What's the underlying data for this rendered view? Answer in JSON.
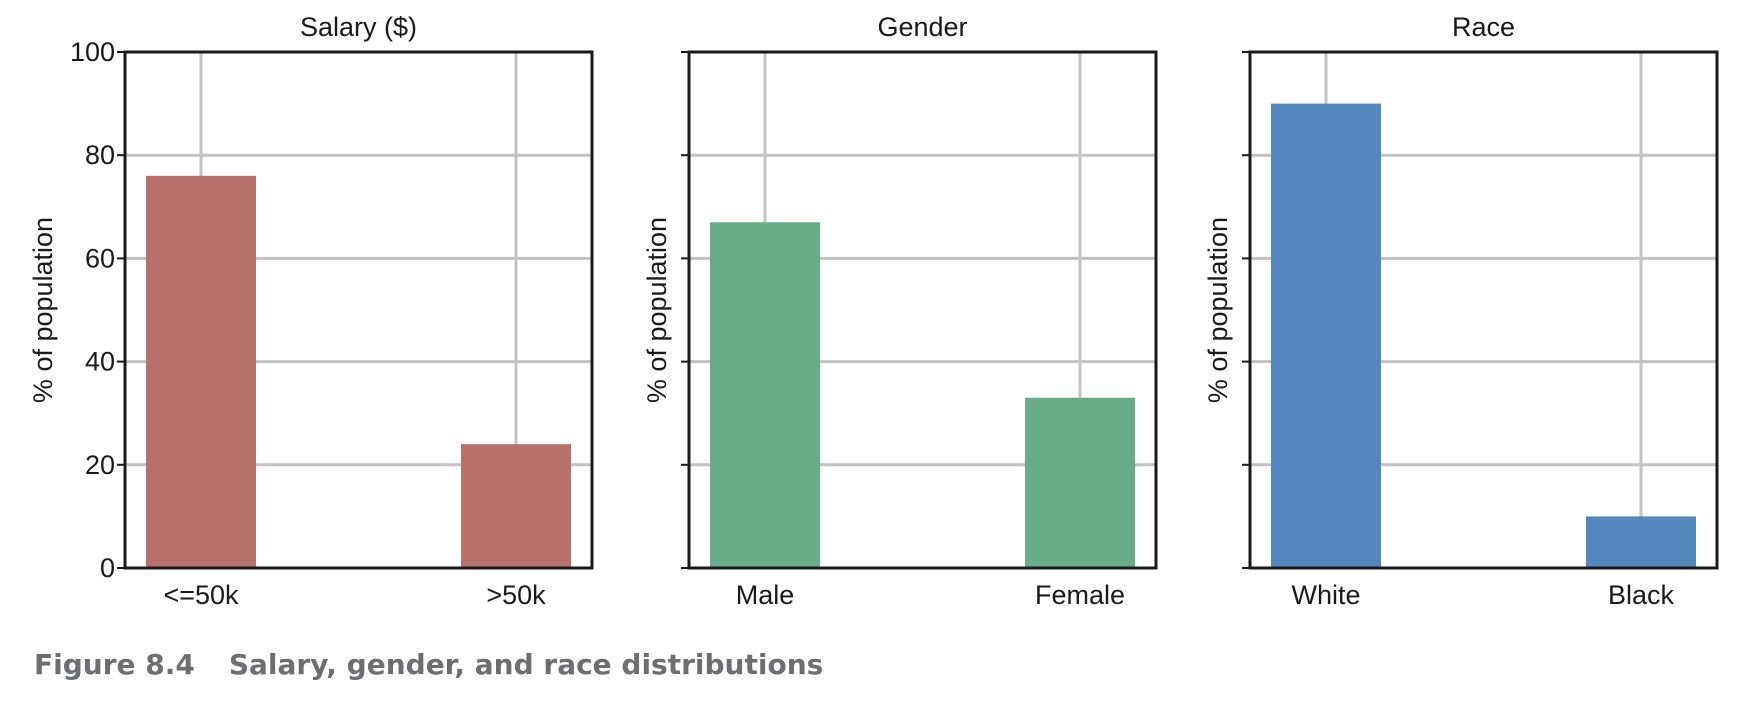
{
  "caption": {
    "label": "Figure 8.4",
    "text": "Salary, gender, and race distributions"
  },
  "chart_data": [
    {
      "type": "bar",
      "title": "Salary ($)",
      "xlabel": "",
      "ylabel": "% of population",
      "categories": [
        "<=50k",
        ">50k"
      ],
      "values": [
        76,
        24
      ],
      "ylim": [
        0,
        100
      ],
      "yticks": [
        0,
        20,
        40,
        60,
        80,
        100
      ],
      "show_ytick_labels": true,
      "grid": true,
      "color": "#b8716a"
    },
    {
      "type": "bar",
      "title": "Gender",
      "xlabel": "",
      "ylabel": "% of population",
      "categories": [
        "Male",
        "Female"
      ],
      "values": [
        67,
        33
      ],
      "ylim": [
        0,
        100
      ],
      "yticks": [
        0,
        20,
        40,
        60,
        80,
        100
      ],
      "show_ytick_labels": false,
      "grid": true,
      "color": "#68ad89"
    },
    {
      "type": "bar",
      "title": "Race",
      "xlabel": "",
      "ylabel": "% of population",
      "categories": [
        "White",
        "Black"
      ],
      "values": [
        90,
        10
      ],
      "ylim": [
        0,
        100
      ],
      "yticks": [
        0,
        20,
        40,
        60,
        80,
        100
      ],
      "show_ytick_labels": false,
      "grid": true,
      "color": "#5387be"
    }
  ]
}
